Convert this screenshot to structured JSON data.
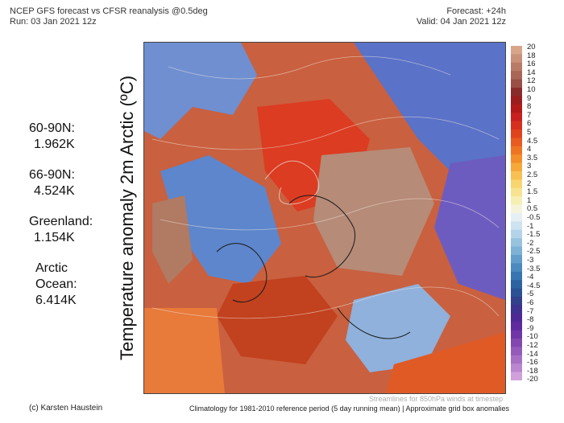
{
  "header": {
    "title": "NCEP GFS forecast vs CFSR reanalysis @0.5deg",
    "run": "Run: 03 Jan 2021 12z",
    "forecast": "Forecast: +24h",
    "valid": "Valid: 04 Jan 2021 12z"
  },
  "stats": [
    {
      "label": "60-90N:",
      "value": "1.962K"
    },
    {
      "label": "66-90N:",
      "value": "4.524K"
    },
    {
      "label": "Greenland:",
      "value": "1.154K"
    },
    {
      "label_line1": "Arctic",
      "label_line2": "Ocean:",
      "value": "6.414K"
    }
  ],
  "vertical_label": "Temperature anomaly 2m Arctic (ºC)",
  "colorbar": {
    "ticks": [
      "20",
      "18",
      "16",
      "14",
      "12",
      "10",
      "9",
      "8",
      "7",
      "6",
      "5",
      "4.5",
      "4",
      "3.5",
      "3",
      "2.5",
      "2",
      "1.5",
      "1",
      "0.5",
      "-0.5",
      "-1",
      "-1.5",
      "-2",
      "-2.5",
      "-3",
      "-3.5",
      "-4",
      "-4.5",
      "-5",
      "-6",
      "-7",
      "-8",
      "-9",
      "-10",
      "-12",
      "-14",
      "-16",
      "-18",
      "-20"
    ],
    "colors": [
      "#d8a58b",
      "#c9907a",
      "#b97a67",
      "#a96556",
      "#994f46",
      "#8a2b2b",
      "#9c1d1d",
      "#b21a1a",
      "#c81f1f",
      "#d7301f",
      "#e0441d",
      "#e85a1f",
      "#ef7422",
      "#f38e2a",
      "#f6a83b",
      "#f8c052",
      "#f9d56f",
      "#f8e390",
      "#f7eeb4",
      "#f5f3d9",
      "#e6f0f4",
      "#cde3ef",
      "#b3d4e8",
      "#98c3df",
      "#7db1d6",
      "#639ecb",
      "#4b8abf",
      "#3876b2",
      "#2c63a3",
      "#2a5196",
      "#33408c",
      "#3f3190",
      "#4e2996",
      "#5f2a9e",
      "#7036a6",
      "#8248b0",
      "#955bba",
      "#a870c5",
      "#bb86d0",
      "#cfa0dc"
    ]
  },
  "footer": {
    "credit": "(c) Karsten Haustein",
    "streamlines": "Streamlines for 850hPa winds at timestep",
    "climatology": "Climatology for 1981-2010 reference period (5 day running mean) | Approximate grid box anomalies"
  }
}
